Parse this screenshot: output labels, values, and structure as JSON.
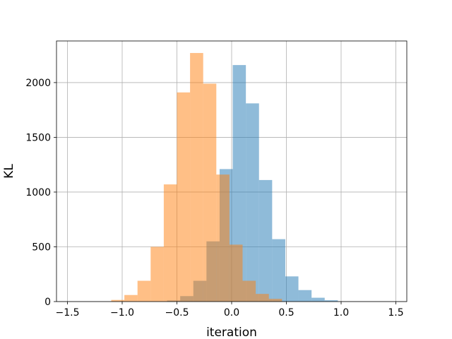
{
  "chart_data": {
    "type": "bar",
    "title": "",
    "xlabel": "iteration",
    "ylabel": "KL",
    "xlim": [
      -1.6,
      1.6
    ],
    "ylim": [
      0,
      2380
    ],
    "xticks": [
      -1.5,
      -1.0,
      -0.5,
      0.0,
      0.5,
      1.0,
      1.5
    ],
    "xtick_labels": [
      "−1.5",
      "−1.0",
      "−0.5",
      "0.0",
      "0.5",
      "1.0",
      "1.5"
    ],
    "yticks": [
      0,
      500,
      1000,
      1500,
      2000
    ],
    "ytick_labels": [
      "0",
      "500",
      "1000",
      "1500",
      "2000"
    ],
    "grid": true,
    "bin_width": 0.12,
    "series": [
      {
        "color": "#1f77b4",
        "opacity": 0.5,
        "bins": [
          {
            "x0": -0.59,
            "value": 10
          },
          {
            "x0": -0.47,
            "value": 50
          },
          {
            "x0": -0.35,
            "value": 190
          },
          {
            "x0": -0.23,
            "value": 550
          },
          {
            "x0": -0.11,
            "value": 1210
          },
          {
            "x0": 0.01,
            "value": 2160
          },
          {
            "x0": 0.13,
            "value": 1810
          },
          {
            "x0": 0.25,
            "value": 1110
          },
          {
            "x0": 0.37,
            "value": 570
          },
          {
            "x0": 0.49,
            "value": 230
          },
          {
            "x0": 0.61,
            "value": 105
          },
          {
            "x0": 0.73,
            "value": 35
          },
          {
            "x0": 0.85,
            "value": 12
          }
        ]
      },
      {
        "color": "#ff7f0e",
        "opacity": 0.5,
        "bins": [
          {
            "x0": -1.1,
            "value": 15
          },
          {
            "x0": -0.98,
            "value": 60
          },
          {
            "x0": -0.86,
            "value": 190
          },
          {
            "x0": -0.74,
            "value": 500
          },
          {
            "x0": -0.62,
            "value": 1070
          },
          {
            "x0": -0.5,
            "value": 1910
          },
          {
            "x0": -0.38,
            "value": 2270
          },
          {
            "x0": -0.26,
            "value": 1990
          },
          {
            "x0": -0.14,
            "value": 1160
          },
          {
            "x0": -0.02,
            "value": 520
          },
          {
            "x0": 0.1,
            "value": 190
          },
          {
            "x0": 0.22,
            "value": 70
          },
          {
            "x0": 0.34,
            "value": 25
          }
        ]
      }
    ]
  }
}
